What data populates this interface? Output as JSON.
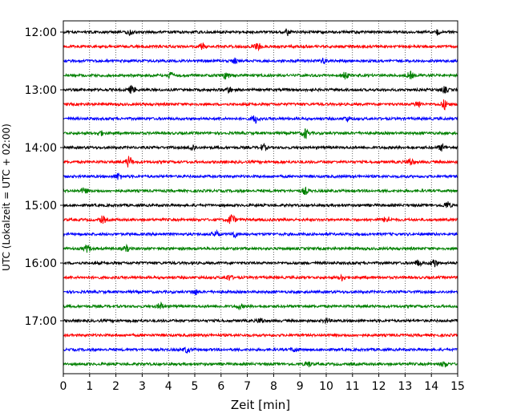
{
  "chart_data": {
    "type": "line",
    "title": "",
    "xlabel": "Zeit  [min]",
    "ylabel": "UTC (Lokalzeit = UTC + 02:00)",
    "xlim": [
      0,
      15
    ],
    "x_ticks": [
      0,
      1,
      2,
      3,
      4,
      5,
      6,
      7,
      8,
      9,
      10,
      11,
      12,
      13,
      14,
      15
    ],
    "y_tick_labels": [
      "12:00",
      "13:00",
      "14:00",
      "15:00",
      "16:00",
      "17:00"
    ],
    "row_interval_min": 15,
    "row_start": "12:00",
    "row_count": 24,
    "color_cycle": [
      "#000000",
      "#ff0000",
      "#0000ff",
      "#008000"
    ],
    "grid": {
      "vertical": true,
      "style": "dotted"
    },
    "legend": "none",
    "events": [
      {
        "row": 0,
        "t": 2.5,
        "amp": 1.6
      },
      {
        "row": 0,
        "t": 8.5,
        "amp": 1.8
      },
      {
        "row": 0,
        "t": 14.2,
        "amp": 1.4
      },
      {
        "row": 1,
        "t": 5.3,
        "amp": 1.8
      },
      {
        "row": 1,
        "t": 7.4,
        "amp": 1.7
      },
      {
        "row": 2,
        "t": 6.5,
        "amp": 1.6
      },
      {
        "row": 2,
        "t": 9.9,
        "amp": 1.3
      },
      {
        "row": 3,
        "t": 4.1,
        "amp": 1.5
      },
      {
        "row": 3,
        "t": 6.2,
        "amp": 1.8
      },
      {
        "row": 3,
        "t": 10.7,
        "amp": 2.0
      },
      {
        "row": 3,
        "t": 13.2,
        "amp": 1.8
      },
      {
        "row": 4,
        "t": 2.6,
        "amp": 2.0
      },
      {
        "row": 4,
        "t": 6.3,
        "amp": 1.5
      },
      {
        "row": 4,
        "t": 14.5,
        "amp": 1.4
      },
      {
        "row": 5,
        "t": 13.5,
        "amp": 1.7
      },
      {
        "row": 5,
        "t": 14.5,
        "amp": 2.5
      },
      {
        "row": 6,
        "t": 7.3,
        "amp": 2.2
      },
      {
        "row": 6,
        "t": 10.8,
        "amp": 1.3
      },
      {
        "row": 7,
        "t": 9.2,
        "amp": 2.5
      },
      {
        "row": 7,
        "t": 1.4,
        "amp": 1.2
      },
      {
        "row": 8,
        "t": 4.9,
        "amp": 1.7
      },
      {
        "row": 8,
        "t": 7.6,
        "amp": 1.6
      },
      {
        "row": 8,
        "t": 14.4,
        "amp": 1.6
      },
      {
        "row": 9,
        "t": 2.5,
        "amp": 3.0
      },
      {
        "row": 9,
        "t": 13.2,
        "amp": 2.0
      },
      {
        "row": 10,
        "t": 2.1,
        "amp": 1.8
      },
      {
        "row": 11,
        "t": 0.8,
        "amp": 1.4
      },
      {
        "row": 11,
        "t": 9.2,
        "amp": 1.7
      },
      {
        "row": 12,
        "t": 14.6,
        "amp": 1.8
      },
      {
        "row": 13,
        "t": 6.4,
        "amp": 3.0
      },
      {
        "row": 13,
        "t": 12.3,
        "amp": 1.8
      },
      {
        "row": 13,
        "t": 1.5,
        "amp": 1.8
      },
      {
        "row": 14,
        "t": 5.8,
        "amp": 1.6
      },
      {
        "row": 14,
        "t": 6.5,
        "amp": 1.5
      },
      {
        "row": 15,
        "t": 0.9,
        "amp": 1.7
      },
      {
        "row": 15,
        "t": 2.4,
        "amp": 1.4
      },
      {
        "row": 16,
        "t": 13.5,
        "amp": 1.5
      },
      {
        "row": 16,
        "t": 14.1,
        "amp": 2.2
      },
      {
        "row": 17,
        "t": 10.6,
        "amp": 1.5
      },
      {
        "row": 17,
        "t": 6.3,
        "amp": 1.4
      },
      {
        "row": 18,
        "t": 5.0,
        "amp": 1.4
      },
      {
        "row": 19,
        "t": 3.7,
        "amp": 1.7
      },
      {
        "row": 19,
        "t": 6.7,
        "amp": 1.2
      },
      {
        "row": 20,
        "t": 7.5,
        "amp": 1.4
      },
      {
        "row": 20,
        "t": 10.0,
        "amp": 1.2
      },
      {
        "row": 22,
        "t": 4.7,
        "amp": 1.4
      },
      {
        "row": 22,
        "t": 8.8,
        "amp": 1.2
      },
      {
        "row": 23,
        "t": 9.3,
        "amp": 1.5
      },
      {
        "row": 23,
        "t": 14.5,
        "amp": 1.4
      }
    ]
  }
}
